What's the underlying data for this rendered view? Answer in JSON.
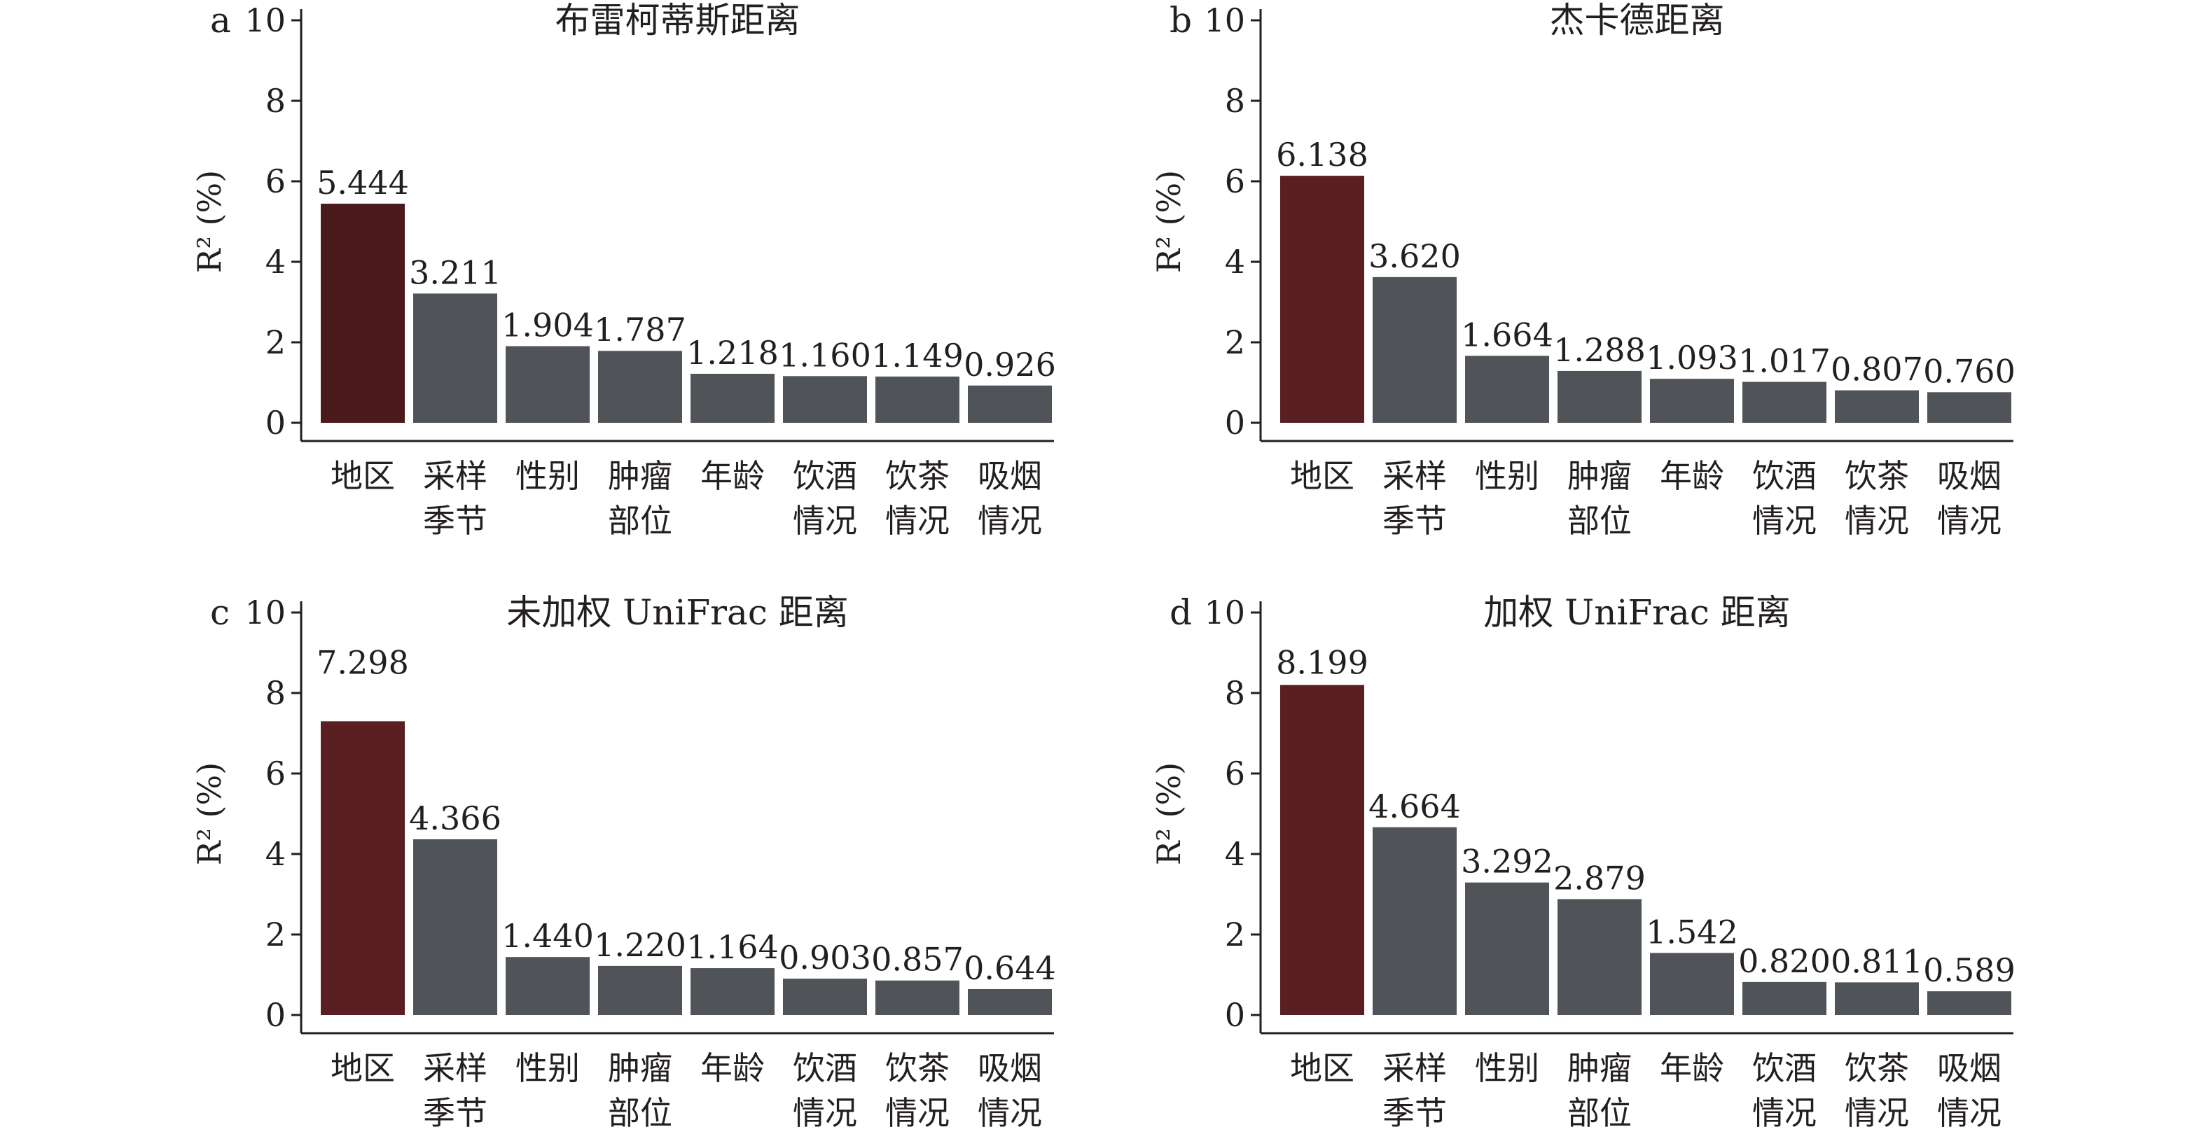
{
  "colors": {
    "highlight": "#5a1f22",
    "highlight_a": "#4a1a1c",
    "bar": "#505357",
    "axis": "#231f20"
  },
  "chart_data": [
    {
      "type": "bar",
      "panel": "a",
      "title": "布雷柯蒂斯距离",
      "ylabel": "R² (%)",
      "ylim": [
        0,
        10
      ],
      "yticks": [
        "0",
        "2",
        "4",
        "6",
        "8",
        "10"
      ],
      "categories": [
        [
          "地区"
        ],
        [
          "采样",
          "季节"
        ],
        [
          "性别"
        ],
        [
          "肿瘤",
          "部位"
        ],
        [
          "年龄"
        ],
        [
          "饮酒",
          "情况"
        ],
        [
          "饮茶",
          "情况"
        ],
        [
          "吸烟",
          "情况"
        ]
      ],
      "values": [
        5.444,
        3.211,
        1.904,
        1.787,
        1.218,
        1.16,
        1.149,
        0.926
      ],
      "value_labels": [
        "5.444",
        "3.211",
        "1.904",
        "1.787",
        "1.218",
        "1.160",
        "1.149",
        "0.926"
      ],
      "highlight_index": 0
    },
    {
      "type": "bar",
      "panel": "b",
      "title": "杰卡德距离",
      "ylabel": "R² (%)",
      "ylim": [
        0,
        10
      ],
      "yticks": [
        "0",
        "2",
        "4",
        "6",
        "8",
        "10"
      ],
      "categories": [
        [
          "地区"
        ],
        [
          "采样",
          "季节"
        ],
        [
          "性别"
        ],
        [
          "肿瘤",
          "部位"
        ],
        [
          "年龄"
        ],
        [
          "饮酒",
          "情况"
        ],
        [
          "饮茶",
          "情况"
        ],
        [
          "吸烟",
          "情况"
        ]
      ],
      "values": [
        6.138,
        3.62,
        1.664,
        1.288,
        1.093,
        1.017,
        0.807,
        0.76
      ],
      "value_labels": [
        "6.138",
        "3.620",
        "1.664",
        "1.288",
        "1.093",
        "1.017",
        "0.807",
        "0.760"
      ],
      "highlight_index": 0
    },
    {
      "type": "bar",
      "panel": "c",
      "title": "未加权 UniFrac 距离",
      "ylabel": "R² (%)",
      "ylim": [
        0,
        10
      ],
      "yticks": [
        "0",
        "2",
        "4",
        "6",
        "8",
        "10"
      ],
      "categories": [
        [
          "地区"
        ],
        [
          "采样",
          "季节"
        ],
        [
          "性别"
        ],
        [
          "肿瘤",
          "部位"
        ],
        [
          "年龄"
        ],
        [
          "饮酒",
          "情况"
        ],
        [
          "饮茶",
          "情况"
        ],
        [
          "吸烟",
          "情况"
        ]
      ],
      "values": [
        7.298,
        4.366,
        1.44,
        1.22,
        1.164,
        0.903,
        0.857,
        0.644
      ],
      "value_labels": [
        "7.298",
        "4.366",
        "1.440",
        "1.220",
        "1.164",
        "0.903",
        "0.857",
        "0.644"
      ],
      "highlight_index": 0
    },
    {
      "type": "bar",
      "panel": "d",
      "title": "加权 UniFrac 距离",
      "ylabel": "R² (%)",
      "ylim": [
        0,
        10
      ],
      "yticks": [
        "0",
        "2",
        "4",
        "6",
        "8",
        "10"
      ],
      "categories": [
        [
          "地区"
        ],
        [
          "采样",
          "季节"
        ],
        [
          "性别"
        ],
        [
          "肿瘤",
          "部位"
        ],
        [
          "年龄"
        ],
        [
          "饮酒",
          "情况"
        ],
        [
          "饮茶",
          "情况"
        ],
        [
          "吸烟",
          "情况"
        ]
      ],
      "values": [
        8.199,
        4.664,
        3.292,
        2.879,
        1.542,
        0.82,
        0.811,
        0.589
      ],
      "value_labels": [
        "8.199",
        "4.664",
        "3.292",
        "2.879",
        "1.542",
        "0.820",
        "0.811",
        "0.589"
      ],
      "highlight_index": 0
    }
  ]
}
